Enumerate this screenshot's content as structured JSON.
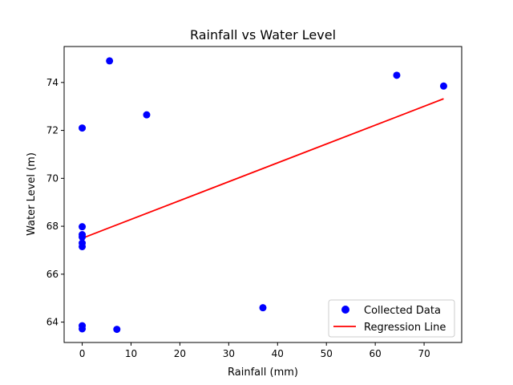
{
  "chart_data": {
    "type": "scatter",
    "title": "Rainfall vs Water Level",
    "xlabel": "Rainfall (mm)",
    "ylabel": "Water Level (m)",
    "xlim": [
      -3.7,
      77.7
    ],
    "ylim": [
      63.15,
      75.5
    ],
    "x_ticks": [
      0,
      10,
      20,
      30,
      40,
      50,
      60,
      70
    ],
    "y_ticks": [
      64,
      66,
      68,
      70,
      72,
      74
    ],
    "grid": false,
    "legend_position": "bottom-right",
    "series": [
      {
        "name": "Collected Data",
        "kind": "scatter",
        "color": "#0000ff",
        "points": [
          {
            "x": 5.6,
            "y": 74.9
          },
          {
            "x": 64.4,
            "y": 74.3
          },
          {
            "x": 74.0,
            "y": 73.85
          },
          {
            "x": 13.2,
            "y": 72.65
          },
          {
            "x": 0.0,
            "y": 72.1
          },
          {
            "x": 0.0,
            "y": 67.98
          },
          {
            "x": 0.0,
            "y": 67.65
          },
          {
            "x": 0.0,
            "y": 67.55
          },
          {
            "x": 0.0,
            "y": 67.3
          },
          {
            "x": 0.0,
            "y": 67.15
          },
          {
            "x": 37.0,
            "y": 64.6
          },
          {
            "x": 0.0,
            "y": 63.85
          },
          {
            "x": 0.0,
            "y": 63.72
          },
          {
            "x": 7.1,
            "y": 63.7
          }
        ]
      },
      {
        "name": "Regression Line",
        "kind": "line",
        "color": "#ff0000",
        "points": [
          {
            "x": 0.0,
            "y": 67.5
          },
          {
            "x": 74.0,
            "y": 73.32
          }
        ]
      }
    ]
  }
}
